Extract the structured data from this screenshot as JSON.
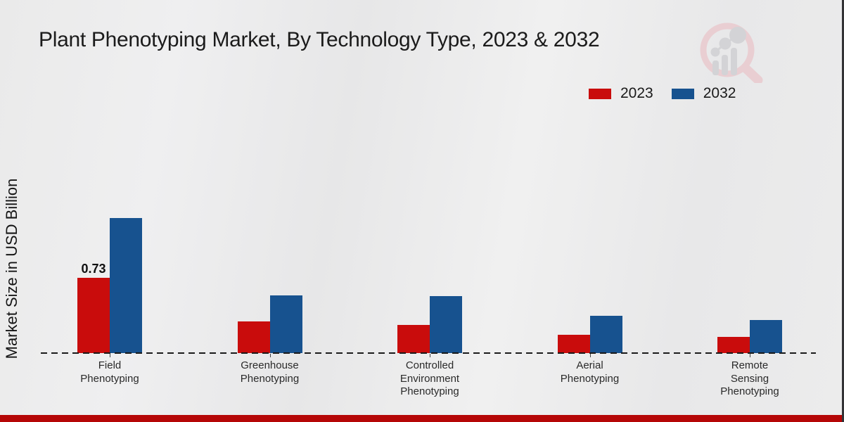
{
  "colors": {
    "series_2023": "#c90c0c",
    "series_2032": "#17528f",
    "footer_bar": "#b50606",
    "background": "#e9e9ea",
    "baseline": "#1a1a1a"
  },
  "watermark_icon": "magnifier-bar-chart-logo",
  "chart_data": {
    "type": "bar",
    "title": "Plant Phenotyping Market, By Technology Type, 2023 & 2032",
    "ylabel": "Market Size in USD Billion",
    "xlabel": "",
    "unit": "USD Billion",
    "grid": false,
    "legend_position": "top-right",
    "baseline_style": "dashed",
    "ylim": [
      0,
      1.45
    ],
    "categories": [
      "Field Phenotyping",
      "Greenhouse Phenotyping",
      "Controlled Environment Phenotyping",
      "Aerial Phenotyping",
      "Remote Sensing Phenotyping"
    ],
    "category_label_lines": [
      [
        "Field",
        "Phenotyping"
      ],
      [
        "Greenhouse",
        "Phenotyping"
      ],
      [
        "Controlled",
        "Environment",
        "Phenotyping"
      ],
      [
        "Aerial",
        "Phenotyping"
      ],
      [
        "Remote",
        "Sensing",
        "Phenotyping"
      ]
    ],
    "series": [
      {
        "name": "2023",
        "color": "#c90c0c",
        "values": [
          0.73,
          0.31,
          0.27,
          0.18,
          0.16
        ]
      },
      {
        "name": "2032",
        "color": "#17528f",
        "values": [
          1.31,
          0.56,
          0.55,
          0.36,
          0.32
        ]
      }
    ],
    "data_labels": [
      {
        "series": "2023",
        "category_index": 0,
        "text": "0.73"
      }
    ]
  }
}
